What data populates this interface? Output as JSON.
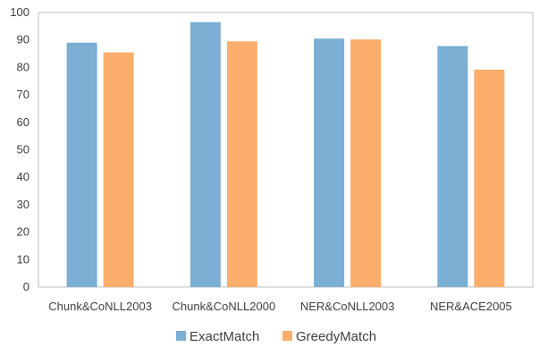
{
  "chart_data": {
    "type": "bar",
    "categories": [
      "Chunk&CoNLL2003",
      "Chunk&CoNLL2000",
      "NER&CoNLL2003",
      "NER&ACE2005"
    ],
    "series": [
      {
        "name": "ExactMatch",
        "color": "#7bafd4",
        "values": [
          89.0,
          96.5,
          90.5,
          87.8
        ]
      },
      {
        "name": "GreedyMatch",
        "color": "#fbae6b",
        "values": [
          85.5,
          89.5,
          90.2,
          79.2
        ]
      }
    ],
    "ylim": [
      0,
      100
    ],
    "yticks": [
      0,
      10,
      20,
      30,
      40,
      50,
      60,
      70,
      80,
      90,
      100
    ],
    "legend_position": "bottom",
    "grid": false
  }
}
